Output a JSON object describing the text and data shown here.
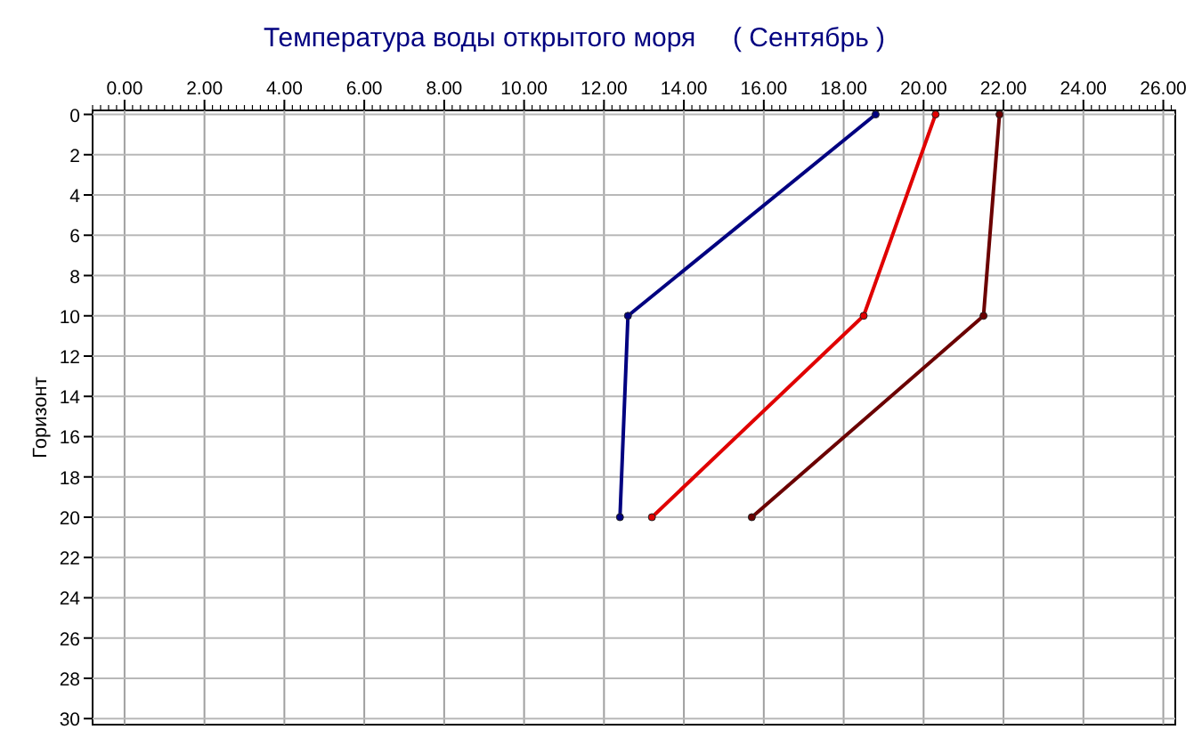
{
  "chart_data": {
    "type": "line",
    "title": "Температура воды открытого моря     ( Сентябрь )",
    "ylabel": "Горизонт",
    "xlim": [
      -0.8,
      26.3
    ],
    "xticks": [
      {
        "value": 0,
        "label": "0.00"
      },
      {
        "value": 2,
        "label": "2.00"
      },
      {
        "value": 4,
        "label": "4.00"
      },
      {
        "value": 6,
        "label": "6.00"
      },
      {
        "value": 8,
        "label": "8.00"
      },
      {
        "value": 10,
        "label": "10.00"
      },
      {
        "value": 12,
        "label": "12.00"
      },
      {
        "value": 14,
        "label": "14.00"
      },
      {
        "value": 16,
        "label": "16.00"
      },
      {
        "value": 18,
        "label": "18.00"
      },
      {
        "value": 20,
        "label": "20.00"
      },
      {
        "value": 22,
        "label": "22.00"
      },
      {
        "value": 24,
        "label": "24.00"
      },
      {
        "value": 26,
        "label": "26.00"
      }
    ],
    "ylim": [
      30.3,
      -0.2
    ],
    "yticks": [
      0,
      2,
      4,
      6,
      8,
      10,
      12,
      14,
      16,
      18,
      20,
      22,
      24,
      26,
      28,
      30
    ],
    "grid": true,
    "marker": "circle",
    "line_style": "solid",
    "series": [
      {
        "color": "#000080",
        "x": [
          18.8,
          12.6,
          12.4
        ],
        "values": [
          0,
          10,
          20
        ]
      },
      {
        "color": "#e00000",
        "x": [
          20.3,
          18.5,
          13.2
        ],
        "values": [
          0,
          10,
          20
        ]
      },
      {
        "color": "#6b0000",
        "x": [
          21.9,
          21.5,
          15.7
        ],
        "values": [
          0,
          10,
          20
        ]
      }
    ]
  }
}
